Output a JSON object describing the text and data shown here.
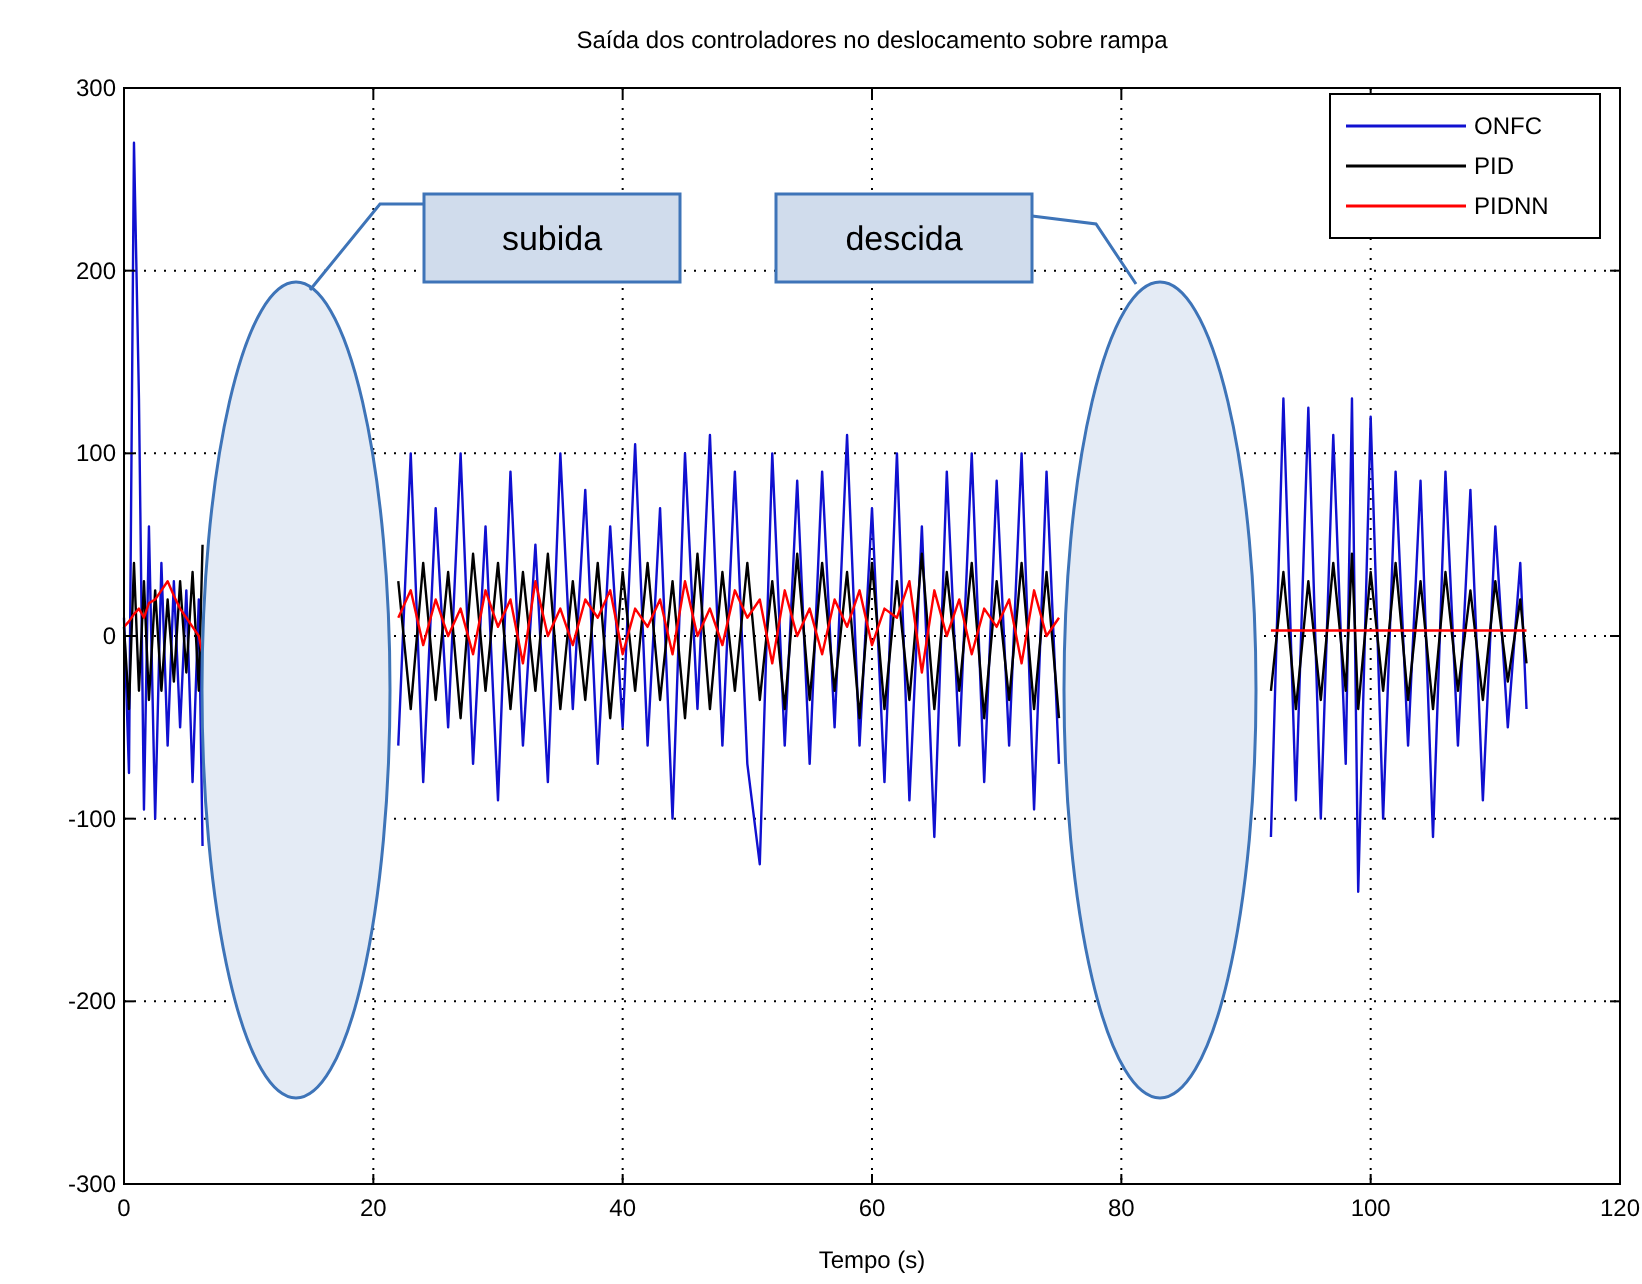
{
  "chart_data": {
    "type": "line",
    "title": "Saída dos controladores no deslocamento sobre rampa",
    "xlabel": "Tempo (s)",
    "x": [
      0,
      0.4,
      0.8,
      1.2,
      1.6,
      2,
      2.5,
      3,
      3.5,
      4,
      4.5,
      5,
      5.5,
      6,
      6.3,
      14,
      22,
      23,
      24,
      25,
      26,
      27,
      28,
      29,
      30,
      31,
      32,
      33,
      34,
      35,
      36,
      37,
      38,
      39,
      40,
      41,
      42,
      43,
      44,
      45,
      46,
      47,
      48,
      49,
      50,
      51,
      52,
      53,
      54,
      55,
      56,
      57,
      58,
      59,
      60,
      61,
      62,
      63,
      64,
      65,
      66,
      67,
      68,
      69,
      70,
      71,
      72,
      73,
      74,
      75,
      83,
      92,
      93,
      94,
      95,
      96,
      97,
      98,
      98.5,
      99,
      100,
      101,
      102,
      103,
      104,
      105,
      106,
      107,
      108,
      109,
      110,
      111,
      112,
      112.5
    ],
    "series": [
      {
        "name": "ONFC",
        "color": "#1010d0",
        "values": [
          10,
          -75,
          270,
          130,
          -95,
          60,
          -100,
          40,
          -60,
          30,
          -50,
          25,
          -80,
          20,
          -115,
          null,
          -60,
          100,
          -80,
          70,
          -50,
          100,
          -70,
          60,
          -90,
          90,
          -60,
          50,
          -80,
          100,
          -40,
          80,
          -70,
          60,
          -50,
          105,
          -60,
          70,
          -100,
          100,
          -40,
          110,
          -60,
          90,
          -70,
          -125,
          100,
          -60,
          85,
          -70,
          90,
          -50,
          110,
          -60,
          70,
          -80,
          100,
          -90,
          60,
          -110,
          90,
          -60,
          100,
          -80,
          85,
          -60,
          100,
          -95,
          90,
          -70,
          null,
          -110,
          130,
          -90,
          125,
          -100,
          110,
          -70,
          130,
          -140,
          120,
          -100,
          90,
          -60,
          85,
          -110,
          90,
          -60,
          80,
          -90,
          60,
          -50,
          40,
          -40
        ]
      },
      {
        "name": "PID",
        "color": "#000000",
        "values": [
          5,
          -40,
          40,
          -30,
          30,
          -35,
          25,
          -30,
          20,
          -25,
          30,
          -20,
          35,
          -30,
          50,
          null,
          30,
          -40,
          40,
          -35,
          35,
          -45,
          45,
          -30,
          40,
          -40,
          35,
          -30,
          45,
          -40,
          30,
          -35,
          40,
          -45,
          35,
          -30,
          40,
          -35,
          30,
          -45,
          45,
          -40,
          35,
          -30,
          40,
          -35,
          30,
          -40,
          45,
          -35,
          40,
          -30,
          35,
          -45,
          40,
          -40,
          30,
          -35,
          45,
          -40,
          35,
          -30,
          40,
          -45,
          30,
          -35,
          40,
          -40,
          35,
          -45,
          null,
          -30,
          35,
          -40,
          30,
          -35,
          40,
          -30,
          45,
          -40,
          35,
          -30,
          40,
          -35,
          30,
          -40,
          35,
          -30,
          25,
          -35,
          30,
          -25,
          20,
          -15
        ]
      },
      {
        "name": "PIDNN",
        "color": "#ff0000",
        "values": [
          5,
          8,
          12,
          15,
          10,
          18,
          20,
          25,
          30,
          22,
          15,
          10,
          5,
          0,
          -10,
          null,
          10,
          25,
          -5,
          20,
          0,
          15,
          -10,
          25,
          5,
          20,
          -15,
          30,
          0,
          15,
          -5,
          20,
          10,
          25,
          -10,
          15,
          5,
          20,
          -10,
          30,
          0,
          15,
          -5,
          25,
          10,
          20,
          -15,
          25,
          0,
          15,
          -10,
          20,
          5,
          25,
          -5,
          15,
          10,
          30,
          -20,
          25,
          0,
          20,
          -10,
          15,
          5,
          20,
          -15,
          25,
          0,
          10,
          null,
          3,
          3,
          3,
          3,
          3,
          3,
          3,
          3,
          3,
          3,
          3,
          3,
          3,
          3,
          3,
          3,
          3,
          3,
          3,
          3,
          3,
          3,
          3
        ]
      }
    ],
    "xlim": [
      0,
      120
    ],
    "xticks": [
      0,
      20,
      40,
      60,
      80,
      100,
      120
    ],
    "ylim": [
      -300,
      300
    ],
    "yticks": [
      -300,
      -200,
      -100,
      0,
      100,
      200,
      300
    ],
    "grid": true,
    "legend": "top right",
    "line_style": "solid",
    "annotations": [
      "subida",
      "descida"
    ]
  }
}
